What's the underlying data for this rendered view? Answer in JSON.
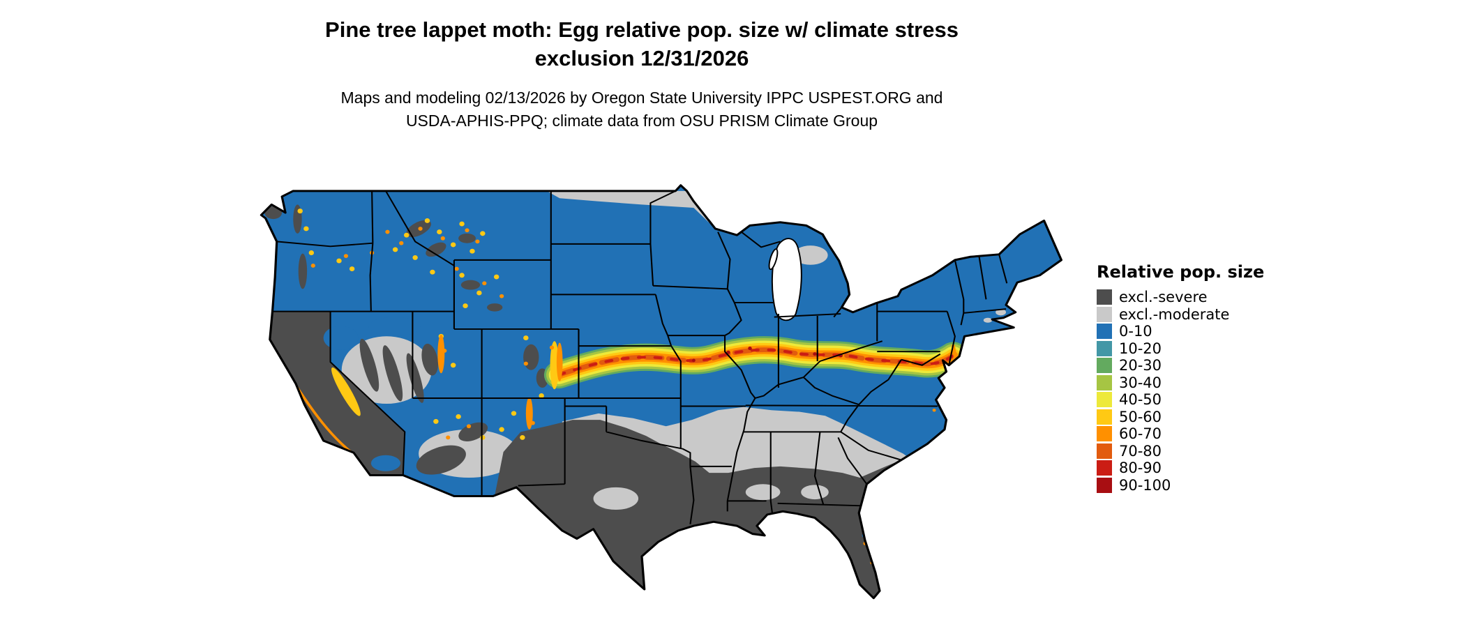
{
  "title": {
    "line1": "Pine tree lappet moth: Egg relative pop. size w/ climate stress",
    "line2": "exclusion 12/31/2026"
  },
  "subtitle": {
    "line1": "Maps and modeling 02/13/2026 by Oregon State University IPPC USPEST.ORG and",
    "line2": "USDA-APHIS-PPQ; climate data from OSU PRISM Climate Group"
  },
  "legend": {
    "title": "Relative pop. size",
    "items": [
      {
        "label": "excl.-severe",
        "color": "#4D4D4D"
      },
      {
        "label": "excl.-moderate",
        "color": "#C9C9C9"
      },
      {
        "label": "0-10",
        "color": "#2171B5"
      },
      {
        "label": "10-20",
        "color": "#4397A6"
      },
      {
        "label": "20-30",
        "color": "#63AA5F"
      },
      {
        "label": "30-40",
        "color": "#A6C543"
      },
      {
        "label": "40-50",
        "color": "#EDE93A"
      },
      {
        "label": "50-60",
        "color": "#FFC914"
      },
      {
        "label": "60-70",
        "color": "#FF9000"
      },
      {
        "label": "70-80",
        "color": "#E25B0E"
      },
      {
        "label": "80-90",
        "color": "#CB1D14"
      },
      {
        "label": "90-100",
        "color": "#A80E12"
      }
    ]
  },
  "map": {
    "region": "contiguous United States",
    "border_color": "#000000",
    "water_color": "#FFFFFF"
  }
}
